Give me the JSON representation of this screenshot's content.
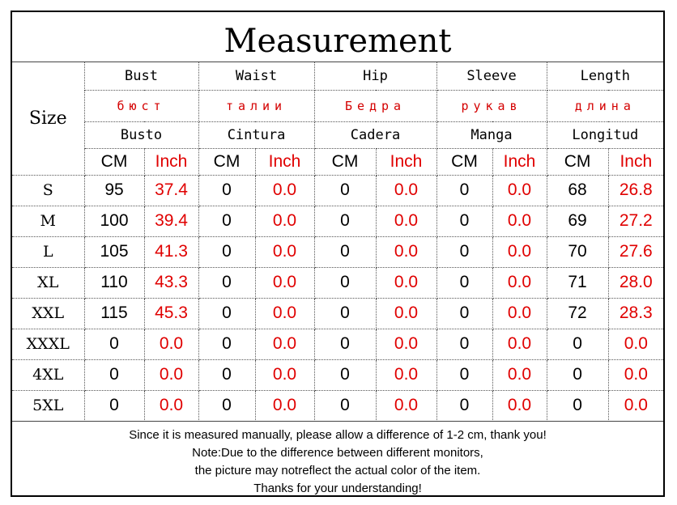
{
  "title": "Measurement",
  "size_header": "Size",
  "columns": [
    {
      "en": "Bust",
      "ru": "бюст",
      "es": "Busto"
    },
    {
      "en": "Waist",
      "ru": "талии",
      "es": "Cintura"
    },
    {
      "en": "Hip",
      "ru": "Бедра",
      "es": "Cadera"
    },
    {
      "en": "Sleeve",
      "ru": "рукав",
      "es": "Manga"
    },
    {
      "en": "Length",
      "ru": "длина",
      "es": "Longitud"
    }
  ],
  "units": {
    "cm": "CM",
    "inch": "Inch"
  },
  "rows": [
    {
      "size": "S",
      "values": [
        "95",
        "37.4",
        "0",
        "0.0",
        "0",
        "0.0",
        "0",
        "0.0",
        "68",
        "26.8"
      ]
    },
    {
      "size": "M",
      "values": [
        "100",
        "39.4",
        "0",
        "0.0",
        "0",
        "0.0",
        "0",
        "0.0",
        "69",
        "27.2"
      ]
    },
    {
      "size": "L",
      "values": [
        "105",
        "41.3",
        "0",
        "0.0",
        "0",
        "0.0",
        "0",
        "0.0",
        "70",
        "27.6"
      ]
    },
    {
      "size": "XL",
      "values": [
        "110",
        "43.3",
        "0",
        "0.0",
        "0",
        "0.0",
        "0",
        "0.0",
        "71",
        "28.0"
      ]
    },
    {
      "size": "XXL",
      "values": [
        "115",
        "45.3",
        "0",
        "0.0",
        "0",
        "0.0",
        "0",
        "0.0",
        "72",
        "28.3"
      ]
    },
    {
      "size": "XXXL",
      "values": [
        "0",
        "0.0",
        "0",
        "0.0",
        "0",
        "0.0",
        "0",
        "0.0",
        "0",
        "0.0"
      ]
    },
    {
      "size": "4XL",
      "values": [
        "0",
        "0.0",
        "0",
        "0.0",
        "0",
        "0.0",
        "0",
        "0.0",
        "0",
        "0.0"
      ]
    },
    {
      "size": "5XL",
      "values": [
        "0",
        "0.0",
        "0",
        "0.0",
        "0",
        "0.0",
        "0",
        "0.0",
        "0",
        "0.0"
      ]
    }
  ],
  "notes": [
    "Since it is measured manually, please allow a difference of 1-2 cm, thank you!",
    "Note:Due to the difference between different monitors,",
    "the picture may notreflect the actual color of the item.",
    "Thanks for your understanding!"
  ],
  "colors": {
    "inch_text": "#e00000",
    "russian_text": "#d40000",
    "border": "#000000"
  }
}
